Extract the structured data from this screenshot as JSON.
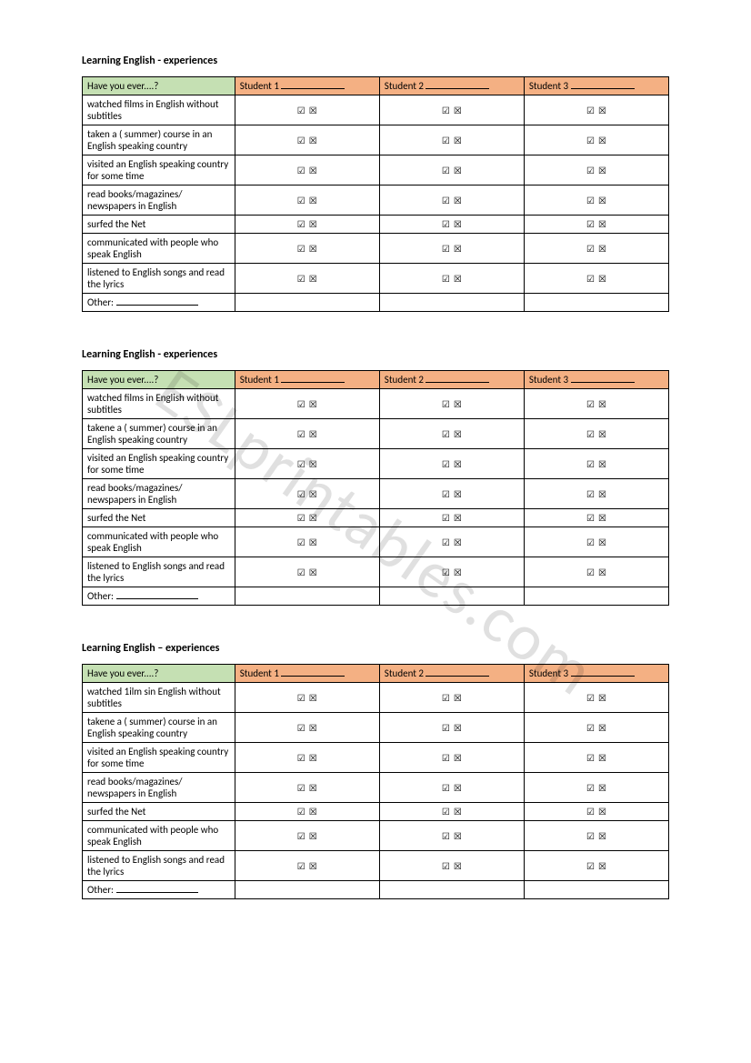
{
  "watermark": "ESLprintables.com",
  "checkbox_check": "☑",
  "checkbox_x": "☒",
  "sections": [
    {
      "title": "Learning English - experiences",
      "header_q": "Have you ever....?",
      "header_s1": "Student 1",
      "header_s2": "Student 2",
      "header_s3": "Student 3",
      "rows": [
        {
          "q": "watched films in English without subtitles"
        },
        {
          "q": "taken a ( summer) course in an English speaking country"
        },
        {
          "q": "visited an English speaking country for some time"
        },
        {
          "q": "read books/magazines/ newspapers in English"
        },
        {
          "q": "surfed the Net"
        },
        {
          "q": "communicated with people who speak English"
        },
        {
          "q": "listened to English songs and read the lyrics"
        }
      ],
      "other_label": "Other:"
    },
    {
      "title": "Learning English - experiences",
      "header_q": "Have you ever....?",
      "header_s1": "Student 1",
      "header_s2": "Student 2",
      "header_s3": "Student 3",
      "rows": [
        {
          "q": "watched films in English without subtitles"
        },
        {
          "q": "takene a ( summer) course in an English speaking country"
        },
        {
          "q": "visited an English speaking country for some time"
        },
        {
          "q": "read books/magazines/ newspapers in English"
        },
        {
          "q": "surfed the Net"
        },
        {
          "q": "communicated with people who speak English"
        },
        {
          "q": "listened to English songs and read the lyrics"
        }
      ],
      "other_label": "Other:"
    },
    {
      "title": "Learning English – experiences",
      "header_q": "Have you ever....?",
      "header_s1": "Student 1",
      "header_s2": "Student 2",
      "header_s3": "Student 3",
      "rows": [
        {
          "q": "watched 1ilm sin English without subtitles"
        },
        {
          "q": "takene a ( summer) course in an English speaking country"
        },
        {
          "q": "visited an English speaking country for some time"
        },
        {
          "q": "read books/magazines/ newspapers in English"
        },
        {
          "q": "surfed the Net"
        },
        {
          "q": "communicated with people who speak English"
        },
        {
          "q": "listened to English songs and read the lyrics"
        }
      ],
      "other_label": "Other:"
    }
  ]
}
